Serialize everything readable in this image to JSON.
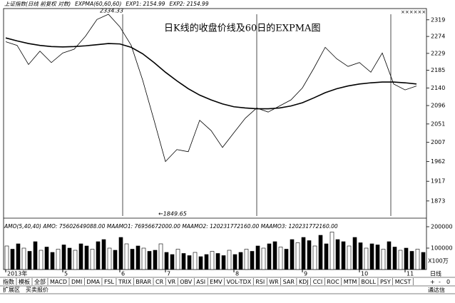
{
  "chart_data": [
    {
      "type": "line",
      "title": "日K线的收盘价线及60日的EXPMA图",
      "header": [
        "上证指数(日线 前复权 对数)",
        "EXPMA(60,60,60)",
        "EXP1: 2154.99",
        "EXP2: 2154.99"
      ],
      "corner_mark": "××××××",
      "categories": [
        "2013年",
        null,
        null,
        null,
        null,
        "5",
        null,
        null,
        null,
        null,
        "6",
        null,
        null,
        null,
        "7",
        null,
        null,
        null,
        null,
        null,
        "8",
        null,
        null,
        null,
        null,
        null,
        "9",
        null,
        null,
        null,
        null,
        "10",
        null,
        null,
        null,
        "11",
        null
      ],
      "series": [
        {
          "color": "#000000",
          "values": [
            2260,
            2250,
            2200,
            2235,
            2205,
            2230,
            2240,
            2275,
            2320,
            2334.33,
            2300,
            2250,
            2160,
            2060,
            1962,
            1990,
            1985,
            2060,
            2035,
            1995,
            2030,
            2065,
            2090,
            2080,
            2095,
            2110,
            2140,
            2190,
            2245,
            2215,
            2195,
            2205,
            2180,
            2230,
            2150,
            2135,
            2145
          ]
        },
        {
          "color": "#000000",
          "values": [
            2270,
            2262,
            2255,
            2250,
            2247,
            2246,
            2247,
            2249,
            2252,
            2255,
            2254,
            2245,
            2228,
            2205,
            2180,
            2158,
            2138,
            2122,
            2110,
            2100,
            2093,
            2090,
            2088,
            2088,
            2090,
            2095,
            2103,
            2115,
            2128,
            2138,
            2145,
            2150,
            2153,
            2155,
            2155,
            2153,
            2150
          ]
        }
      ],
      "high": 2334.33,
      "low_label": "←1849.65",
      "ylim": [
        1840,
        2350
      ],
      "log_scale": true,
      "yticks": [
        2319,
        2274,
        2229,
        2185,
        2140,
        2096,
        2051,
        2007,
        1962,
        1917,
        1873
      ]
    },
    {
      "type": "bar",
      "header": "AMO(5,40,40) AMO: 75602649088.00 MAAMO1: 76956672000.00 MAAMO2: 120231772160.00 MAAMO3: 120231772160.00",
      "color": "#000000",
      "values": [
        110000,
        95000,
        120000,
        100000,
        85000,
        130000,
        90000,
        105000,
        80000,
        95000,
        115000,
        100000,
        90000,
        120000,
        110000,
        95000,
        130000,
        140000,
        100000,
        90000,
        150000,
        120000,
        95000,
        110000,
        100000,
        85000,
        90000,
        120000,
        80000,
        70000,
        95000,
        75000,
        65000,
        80000,
        60000,
        70000,
        85000,
        75000,
        65000,
        90000,
        70000,
        80000,
        95000,
        85000,
        110000,
        100000,
        120000,
        130000,
        105000,
        95000,
        140000,
        125000,
        150000,
        135000,
        110000,
        160000,
        120000,
        175000,
        140000,
        130000,
        110000,
        150000,
        125000,
        100000,
        120000,
        115000,
        95000,
        130000,
        105000,
        90000,
        100000,
        85000,
        95000,
        80000
      ],
      "ylim": [
        0,
        220000
      ],
      "yticks": [
        100000,
        200000
      ],
      "unit_label": "X100万"
    }
  ],
  "toolbar": {
    "left": [
      "指数",
      "模板",
      "全部",
      "MACD",
      "DMI",
      "DMA",
      "FSL",
      "TRIX",
      "BRAR",
      "CR",
      "VR",
      "OBV",
      "ASI",
      "EMV",
      "VOL-TDX",
      "RSI",
      "WR",
      "SAR",
      "KDJ",
      "CCI",
      "ROC",
      "MTM",
      "BOLL",
      "PSY",
      "MCST"
    ],
    "right": [
      "日线",
      "+",
      "-",
      "0"
    ]
  },
  "statusbar": {
    "left": [
      "扩展区",
      "买卖报价"
    ],
    "right": "通达信"
  }
}
